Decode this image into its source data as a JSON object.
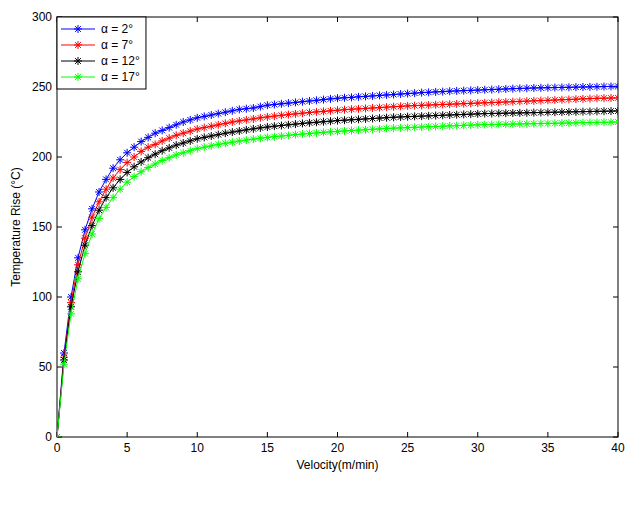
{
  "chart_data": {
    "type": "line",
    "x_label": "Velocity(m/min)",
    "y_label": "Temperature Rise (°C)",
    "x": [
      0,
      0.5,
      1,
      1.5,
      2,
      2.5,
      3,
      3.5,
      4,
      4.5,
      5,
      5.5,
      6,
      6.5,
      7,
      7.5,
      8,
      8.5,
      9,
      9.5,
      10,
      10.5,
      11,
      11.5,
      12,
      12.5,
      13,
      13.5,
      14,
      14.5,
      15,
      15.5,
      16,
      16.5,
      17,
      17.5,
      18,
      18.5,
      19,
      19.5,
      20,
      20.5,
      21,
      21.5,
      22,
      22.5,
      23,
      23.5,
      24,
      24.5,
      25,
      25.5,
      26,
      26.5,
      27,
      27.5,
      28,
      28.5,
      29,
      29.5,
      30,
      30.5,
      31,
      31.5,
      32,
      32.5,
      33,
      33.5,
      34,
      34.5,
      35,
      35.5,
      36,
      36.5,
      37,
      37.5,
      38,
      38.5,
      39,
      39.5,
      40
    ],
    "series": [
      {
        "name": "α = 2°",
        "color": "#0000ff",
        "marker": "asterisk",
        "line_style": "solid",
        "values": [
          0,
          60,
          100,
          128,
          148,
          163,
          175,
          184,
          192,
          198,
          203,
          207,
          211,
          214,
          217,
          219,
          221,
          223,
          225,
          226.5,
          228,
          229,
          230,
          231,
          232,
          233,
          234,
          234.5,
          235,
          236,
          237,
          237.5,
          238,
          238.5,
          239,
          239.5,
          240,
          240.5,
          241,
          241.5,
          242,
          242.3,
          242.6,
          243,
          243.3,
          243.6,
          244,
          244.3,
          244.6,
          245,
          245.3,
          245.6,
          246,
          246.2,
          246.5,
          246.7,
          247,
          247.2,
          247.4,
          247.6,
          247.8,
          248,
          248.2,
          248.4,
          248.6,
          248.8,
          249,
          249.1,
          249.3,
          249.4,
          249.5,
          249.6,
          249.7,
          249.8,
          249.9,
          250,
          250.1,
          250.2,
          250.3,
          250.4,
          250.5
        ]
      },
      {
        "name": "α = 7°",
        "color": "#ff0000",
        "marker": "asterisk",
        "line_style": "solid",
        "values": [
          0,
          57,
          96,
          123,
          142,
          157,
          168,
          177,
          185,
          191,
          196,
          200,
          204,
          207,
          209,
          211.5,
          213.5,
          215.5,
          217,
          218.5,
          220,
          221,
          222,
          223,
          224,
          225,
          225.8,
          226.5,
          227.2,
          228,
          228.6,
          229.2,
          229.8,
          230.3,
          230.8,
          231.3,
          231.8,
          232.2,
          232.6,
          233,
          233.4,
          233.8,
          234.1,
          234.4,
          234.7,
          235,
          235.3,
          235.6,
          235.9,
          236.2,
          236.5,
          236.7,
          236.9,
          237.1,
          237.3,
          237.5,
          237.7,
          237.9,
          238.1,
          238.3,
          238.5,
          238.7,
          238.9,
          239.1,
          239.3,
          239.5,
          239.7,
          239.9,
          240.1,
          240.3,
          240.5,
          240.7,
          240.9,
          241.1,
          241.3,
          241.5,
          241.7,
          241.9,
          242,
          242.1,
          242.2
        ]
      },
      {
        "name": "α = 12°",
        "color": "#000000",
        "marker": "asterisk",
        "line_style": "solid",
        "values": [
          0,
          55,
          93,
          118,
          137,
          151,
          162,
          171,
          178,
          184,
          189,
          193,
          196.5,
          199.5,
          202,
          204.5,
          206.5,
          208.5,
          210,
          211.5,
          213,
          214,
          215,
          216,
          217,
          217.8,
          218.6,
          219.4,
          220.1,
          220.8,
          221.4,
          222,
          222.5,
          223,
          223.5,
          224,
          224.4,
          224.8,
          225.2,
          225.6,
          226,
          226.3,
          226.6,
          226.9,
          227.2,
          227.5,
          227.8,
          228.1,
          228.4,
          228.6,
          228.8,
          229,
          229.2,
          229.4,
          229.6,
          229.8,
          230,
          230.2,
          230.4,
          230.6,
          230.8,
          231,
          231.1,
          231.2,
          231.3,
          231.4,
          231.5,
          231.6,
          231.7,
          231.8,
          231.9,
          232,
          232.1,
          232.2,
          232.3,
          232.4,
          232.5,
          232.6,
          232.7,
          232.8,
          232.9
        ]
      },
      {
        "name": "α = 17°",
        "color": "#00ff00",
        "marker": "asterisk",
        "line_style": "solid",
        "values": [
          0,
          52,
          88,
          113,
          131,
          145,
          156,
          164,
          171,
          177,
          182,
          186,
          189.5,
          192.5,
          195,
          197.5,
          199.5,
          201.5,
          203,
          204.5,
          206,
          207,
          208,
          209,
          209.8,
          210.6,
          211.4,
          212.1,
          212.8,
          213.4,
          214,
          214.5,
          215,
          215.5,
          216,
          216.4,
          216.8,
          217.2,
          217.6,
          218,
          218.3,
          218.6,
          218.9,
          219.2,
          219.5,
          219.8,
          220.1,
          220.4,
          220.6,
          220.8,
          221,
          221.2,
          221.4,
          221.6,
          221.8,
          222,
          222.2,
          222.4,
          222.6,
          222.8,
          223,
          223.1,
          223.2,
          223.3,
          223.4,
          223.5,
          223.6,
          223.7,
          223.8,
          223.9,
          224,
          224.1,
          224.2,
          224.3,
          224.4,
          224.5,
          224.6,
          224.7,
          224.8,
          224.9,
          225
        ]
      }
    ],
    "xlim": [
      0,
      40
    ],
    "ylim": [
      0,
      300
    ],
    "xticks": [
      0,
      5,
      10,
      15,
      20,
      25,
      30,
      35,
      40
    ],
    "yticks": [
      0,
      50,
      100,
      150,
      200,
      250,
      300
    ],
    "grid": false,
    "legend": "upper left"
  }
}
